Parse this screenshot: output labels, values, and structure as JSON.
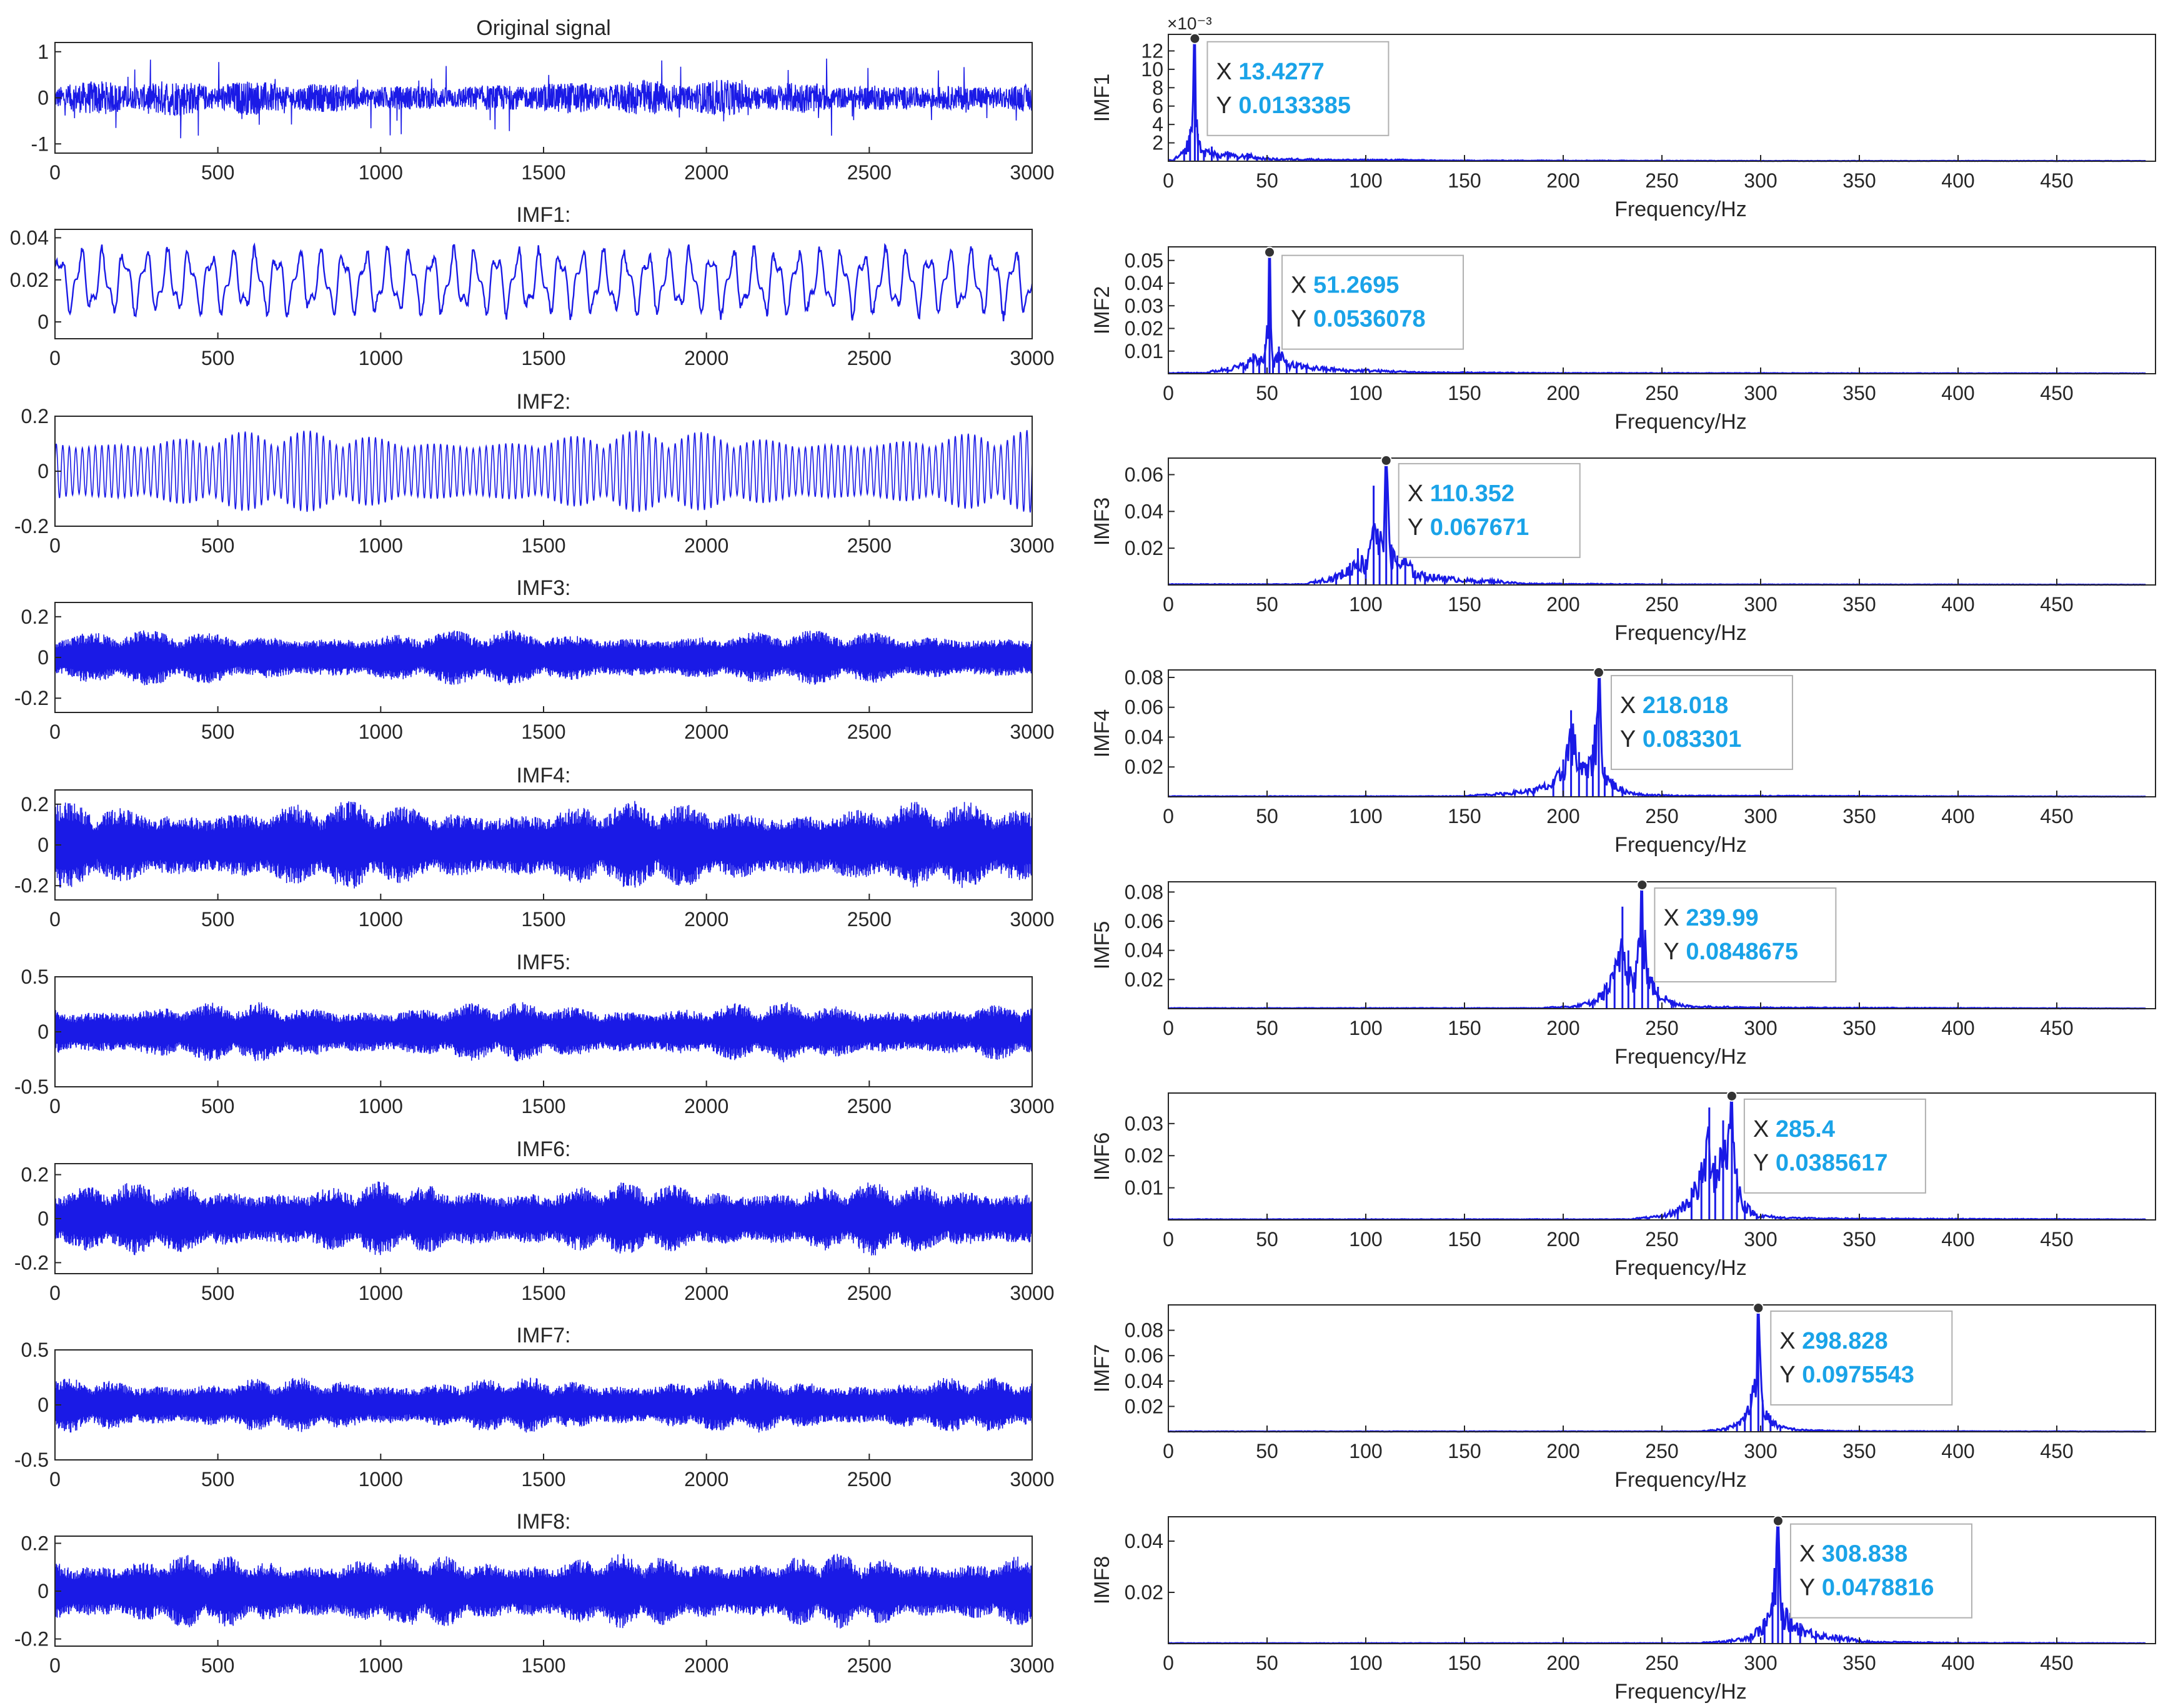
{
  "figure": {
    "colors": {
      "signal": "#1a1ae6",
      "spectrum": "#1a1ae6",
      "axis": "#262626",
      "datatip_value": "#1aa3e8",
      "datatip_key": "#262626",
      "background": "#ffffff"
    }
  },
  "chart_data": [
    {
      "type": "line",
      "panel": "time",
      "title": "Original signal",
      "xlim": [
        0,
        3000
      ],
      "xticks": [
        "0",
        "500",
        "1000",
        "1500",
        "2000",
        "2500",
        "3000"
      ],
      "ylim": [
        -1.2,
        1.2
      ],
      "yticks": [
        "1",
        "0",
        "-1"
      ],
      "ytick_values": [
        1,
        0,
        -1
      ],
      "series": [
        {
          "amplitude": 0.9,
          "style": "noise_with_spikes"
        }
      ]
    },
    {
      "type": "line",
      "panel": "time",
      "title": "IMF1:",
      "xlim": [
        0,
        3000
      ],
      "xticks": [
        "0",
        "500",
        "1000",
        "1500",
        "2000",
        "2500",
        "3000"
      ],
      "ylim": [
        -0.008,
        0.044
      ],
      "yticks": [
        "0.04",
        "0.02",
        "0"
      ],
      "ytick_values": [
        0.04,
        0.02,
        0
      ],
      "series": [
        {
          "amplitude": 0.019,
          "offset": 0.019,
          "cycles": 45,
          "style": "oscillation"
        }
      ]
    },
    {
      "type": "line",
      "panel": "time",
      "title": "IMF2:",
      "xlim": [
        0,
        3000
      ],
      "xticks": [
        "0",
        "500",
        "1000",
        "1500",
        "2000",
        "2500",
        "3000"
      ],
      "ylim": [
        -0.2,
        0.2
      ],
      "yticks": [
        "0.2",
        "0",
        "-0.2"
      ],
      "ytick_values": [
        0.2,
        0,
        -0.2
      ],
      "series": [
        {
          "amplitude": 0.15,
          "cycles": 150,
          "style": "modulated"
        }
      ]
    },
    {
      "type": "line",
      "panel": "time",
      "title": "IMF3:",
      "xlim": [
        0,
        3000
      ],
      "xticks": [
        "0",
        "500",
        "1000",
        "1500",
        "2000",
        "2500",
        "3000"
      ],
      "ylim": [
        -0.27,
        0.27
      ],
      "yticks": [
        "0.2",
        "0",
        "-0.2"
      ],
      "ytick_values": [
        0.2,
        0,
        -0.2
      ],
      "series": [
        {
          "amplitude": 0.14,
          "style": "dense_band"
        }
      ]
    },
    {
      "type": "line",
      "panel": "time",
      "title": "IMF4:",
      "xlim": [
        0,
        3000
      ],
      "xticks": [
        "0",
        "500",
        "1000",
        "1500",
        "2000",
        "2500",
        "3000"
      ],
      "ylim": [
        -0.27,
        0.27
      ],
      "yticks": [
        "0.2",
        "0",
        "-0.2"
      ],
      "ytick_values": [
        0.2,
        0,
        -0.2
      ],
      "series": [
        {
          "amplitude": 0.22,
          "style": "dense_band"
        }
      ]
    },
    {
      "type": "line",
      "panel": "time",
      "title": "IMF5:",
      "xlim": [
        0,
        3000
      ],
      "xticks": [
        "0",
        "500",
        "1000",
        "1500",
        "2000",
        "2500",
        "3000"
      ],
      "ylim": [
        -0.5,
        0.5
      ],
      "yticks": [
        "0.5",
        "0",
        "-0.5"
      ],
      "ytick_values": [
        0.5,
        0,
        -0.5
      ],
      "series": [
        {
          "amplitude": 0.28,
          "style": "dense_band"
        }
      ]
    },
    {
      "type": "line",
      "panel": "time",
      "title": "IMF6:",
      "xlim": [
        0,
        3000
      ],
      "xticks": [
        "0",
        "500",
        "1000",
        "1500",
        "2000",
        "2500",
        "3000"
      ],
      "ylim": [
        -0.25,
        0.25
      ],
      "yticks": [
        "0.2",
        "0",
        "-0.2"
      ],
      "ytick_values": [
        0.2,
        0,
        -0.2
      ],
      "series": [
        {
          "amplitude": 0.17,
          "style": "dense_band"
        }
      ]
    },
    {
      "type": "line",
      "panel": "time",
      "title": "IMF7:",
      "xlim": [
        0,
        3000
      ],
      "xticks": [
        "0",
        "500",
        "1000",
        "1500",
        "2000",
        "2500",
        "3000"
      ],
      "ylim": [
        -0.5,
        0.5
      ],
      "yticks": [
        "0.5",
        "0",
        "-0.5"
      ],
      "ytick_values": [
        0.5,
        0,
        -0.5
      ],
      "series": [
        {
          "amplitude": 0.26,
          "style": "dense_band"
        }
      ]
    },
    {
      "type": "line",
      "panel": "time",
      "title": "IMF8:",
      "xlim": [
        0,
        3000
      ],
      "xticks": [
        "0",
        "500",
        "1000",
        "1500",
        "2000",
        "2500",
        "3000"
      ],
      "ylim": [
        -0.23,
        0.23
      ],
      "yticks": [
        "0.2",
        "0",
        "-0.2"
      ],
      "ytick_values": [
        0.2,
        0,
        -0.2
      ],
      "series": [
        {
          "amplitude": 0.16,
          "style": "dense_band"
        }
      ]
    },
    {
      "type": "line",
      "panel": "spectrum",
      "ylabel": "IMF1",
      "xlabel": "Frequency/Hz",
      "xlim": [
        0,
        500
      ],
      "xticks": [
        "0",
        "50",
        "100",
        "150",
        "200",
        "250",
        "300",
        "350",
        "400",
        "450"
      ],
      "ylim": [
        0,
        0.0138
      ],
      "yticks": [
        "12",
        "10",
        "8",
        "6",
        "4",
        "2"
      ],
      "ytick_values": [
        0.012,
        0.01,
        0.008,
        0.006,
        0.004,
        0.002
      ],
      "exponent": "×10⁻³",
      "peak": {
        "x": 13.4277,
        "y": 0.0133385
      },
      "datatip": {
        "x_key": "X",
        "y_key": "Y",
        "x_value": "13.4277",
        "y_value": "0.0133385"
      },
      "spectrum_points": [
        [
          3,
          0.0003
        ],
        [
          8,
          0.0013
        ],
        [
          11,
          0.0035
        ],
        [
          13.4277,
          0.0133385
        ],
        [
          15,
          0.003
        ],
        [
          18,
          0.0012
        ],
        [
          22,
          0.0016
        ],
        [
          25,
          0.0008
        ],
        [
          30,
          0.0011
        ],
        [
          35,
          0.0006
        ],
        [
          40,
          0.0009
        ],
        [
          45,
          0.0005
        ],
        [
          55,
          0.0003
        ],
        [
          70,
          0.0003
        ],
        [
          85,
          0.0002
        ],
        [
          100,
          0.0002
        ],
        [
          120,
          0.0002
        ],
        [
          140,
          0.0001
        ],
        [
          160,
          0.0001
        ],
        [
          200,
          0.0001
        ],
        [
          300,
          5e-05
        ],
        [
          495,
          5e-05
        ]
      ]
    },
    {
      "type": "line",
      "panel": "spectrum",
      "ylabel": "IMF2",
      "xlabel": "Frequency/Hz",
      "xlim": [
        0,
        500
      ],
      "xticks": [
        "0",
        "50",
        "100",
        "150",
        "200",
        "250",
        "300",
        "350",
        "400",
        "450"
      ],
      "ylim": [
        0,
        0.056
      ],
      "yticks": [
        "0.05",
        "0.04",
        "0.03",
        "0.02",
        "0.01"
      ],
      "ytick_values": [
        0.05,
        0.04,
        0.03,
        0.02,
        0.01
      ],
      "peak": {
        "x": 51.2695,
        "y": 0.0536078
      },
      "datatip": {
        "x_key": "X",
        "y_key": "Y",
        "x_value": "51.2695",
        "y_value": "0.0536078"
      },
      "spectrum_points": [
        [
          20,
          0.001
        ],
        [
          30,
          0.003
        ],
        [
          38,
          0.005
        ],
        [
          43,
          0.009
        ],
        [
          46,
          0.007
        ],
        [
          49,
          0.013
        ],
        [
          51.2695,
          0.0536078
        ],
        [
          53,
          0.006
        ],
        [
          56,
          0.012
        ],
        [
          60,
          0.006
        ],
        [
          65,
          0.005
        ],
        [
          70,
          0.004
        ],
        [
          80,
          0.003
        ],
        [
          90,
          0.002
        ],
        [
          100,
          0.002
        ],
        [
          130,
          0.0008
        ],
        [
          200,
          0.0004
        ],
        [
          495,
          0.0002
        ]
      ]
    },
    {
      "type": "line",
      "panel": "spectrum",
      "ylabel": "IMF3",
      "xlabel": "Frequency/Hz",
      "xlim": [
        0,
        500
      ],
      "xticks": [
        "0",
        "50",
        "100",
        "150",
        "200",
        "250",
        "300",
        "350",
        "400",
        "450"
      ],
      "ylim": [
        0,
        0.069
      ],
      "yticks": [
        "0.06",
        "0.04",
        "0.02"
      ],
      "ytick_values": [
        0.06,
        0.04,
        0.02
      ],
      "peak": {
        "x": 110.352,
        "y": 0.067671
      },
      "datatip": {
        "x_key": "X",
        "y_key": "Y",
        "x_value": "110.352",
        "y_value": "0.067671"
      },
      "spectrum_points": [
        [
          70,
          0.001
        ],
        [
          85,
          0.006
        ],
        [
          92,
          0.012
        ],
        [
          96,
          0.02
        ],
        [
          100,
          0.014
        ],
        [
          104,
          0.054
        ],
        [
          107,
          0.025
        ],
        [
          110.352,
          0.067671
        ],
        [
          113,
          0.022
        ],
        [
          116,
          0.016
        ],
        [
          120,
          0.018
        ],
        [
          125,
          0.008
        ],
        [
          130,
          0.007
        ],
        [
          140,
          0.005
        ],
        [
          155,
          0.003
        ],
        [
          165,
          0.003
        ],
        [
          180,
          0.001
        ],
        [
          250,
          0.0004
        ],
        [
          495,
          0.0002
        ]
      ]
    },
    {
      "type": "line",
      "panel": "spectrum",
      "ylabel": "IMF4",
      "xlabel": "Frequency/Hz",
      "xlim": [
        0,
        500
      ],
      "xticks": [
        "0",
        "50",
        "100",
        "150",
        "200",
        "250",
        "300",
        "350",
        "400",
        "450"
      ],
      "ylim": [
        0,
        0.085
      ],
      "yticks": [
        "0.08",
        "0.06",
        "0.04",
        "0.02"
      ],
      "ytick_values": [
        0.08,
        0.06,
        0.04,
        0.02
      ],
      "peak": {
        "x": 218.018,
        "y": 0.083301
      },
      "datatip": {
        "x_key": "X",
        "y_key": "Y",
        "x_value": "218.018",
        "y_value": "0.083301"
      },
      "spectrum_points": [
        [
          150,
          0.001
        ],
        [
          170,
          0.003
        ],
        [
          185,
          0.006
        ],
        [
          195,
          0.012
        ],
        [
          200,
          0.025
        ],
        [
          204,
          0.058
        ],
        [
          208,
          0.03
        ],
        [
          212,
          0.022
        ],
        [
          215,
          0.035
        ],
        [
          218.018,
          0.083301
        ],
        [
          221,
          0.02
        ],
        [
          225,
          0.012
        ],
        [
          230,
          0.006
        ],
        [
          240,
          0.002
        ],
        [
          260,
          0.001
        ],
        [
          495,
          0.0002
        ]
      ]
    },
    {
      "type": "line",
      "panel": "spectrum",
      "ylabel": "IMF5",
      "xlabel": "Frequency/Hz",
      "xlim": [
        0,
        500
      ],
      "xticks": [
        "0",
        "50",
        "100",
        "150",
        "200",
        "250",
        "300",
        "350",
        "400",
        "450"
      ],
      "ylim": [
        0,
        0.087
      ],
      "yticks": [
        "0.08",
        "0.06",
        "0.04",
        "0.02"
      ],
      "ytick_values": [
        0.08,
        0.06,
        0.04,
        0.02
      ],
      "peak": {
        "x": 239.99,
        "y": 0.0848675
      },
      "datatip": {
        "x_key": "X",
        "y_key": "Y",
        "x_value": "239.99",
        "y_value": "0.0848675"
      },
      "spectrum_points": [
        [
          190,
          0.001
        ],
        [
          205,
          0.002
        ],
        [
          215,
          0.006
        ],
        [
          222,
          0.018
        ],
        [
          226,
          0.03
        ],
        [
          230,
          0.07
        ],
        [
          233,
          0.04
        ],
        [
          236,
          0.025
        ],
        [
          239.99,
          0.0848675
        ],
        [
          243,
          0.028
        ],
        [
          248,
          0.015
        ],
        [
          255,
          0.006
        ],
        [
          265,
          0.002
        ],
        [
          300,
          0.001
        ],
        [
          495,
          0.0002
        ]
      ]
    },
    {
      "type": "line",
      "panel": "spectrum",
      "ylabel": "IMF6",
      "xlabel": "Frequency/Hz",
      "xlim": [
        0,
        500
      ],
      "xticks": [
        "0",
        "50",
        "100",
        "150",
        "200",
        "250",
        "300",
        "350",
        "400",
        "450"
      ],
      "ylim": [
        0,
        0.0395
      ],
      "yticks": [
        "0.03",
        "0.02",
        "0.01"
      ],
      "ytick_values": [
        0.03,
        0.02,
        0.01
      ],
      "peak": {
        "x": 285.4,
        "y": 0.0385617
      },
      "datatip": {
        "x_key": "X",
        "y_key": "Y",
        "x_value": "285.4",
        "y_value": "0.0385617"
      },
      "spectrum_points": [
        [
          235,
          0.0005
        ],
        [
          250,
          0.0015
        ],
        [
          258,
          0.004
        ],
        [
          265,
          0.01
        ],
        [
          270,
          0.018
        ],
        [
          274,
          0.035
        ],
        [
          277,
          0.02
        ],
        [
          281,
          0.031
        ],
        [
          285.4,
          0.0385617
        ],
        [
          288,
          0.016
        ],
        [
          292,
          0.006
        ],
        [
          298,
          0.002
        ],
        [
          310,
          0.001
        ],
        [
          330,
          0.0006
        ],
        [
          495,
          0.0002
        ]
      ]
    },
    {
      "type": "line",
      "panel": "spectrum",
      "ylabel": "IMF7",
      "xlabel": "Frequency/Hz",
      "xlim": [
        0,
        500
      ],
      "xticks": [
        "0",
        "50",
        "100",
        "150",
        "200",
        "250",
        "300",
        "350",
        "400",
        "450"
      ],
      "ylim": [
        0,
        0.1
      ],
      "yticks": [
        "0.08",
        "0.06",
        "0.04",
        "0.02"
      ],
      "ytick_values": [
        0.08,
        0.06,
        0.04,
        0.02
      ],
      "peak": {
        "x": 298.828,
        "y": 0.0975543
      },
      "datatip": {
        "x_key": "X",
        "y_key": "Y",
        "x_value": "298.828",
        "y_value": "0.0975543"
      },
      "spectrum_points": [
        [
          270,
          0.0008
        ],
        [
          282,
          0.003
        ],
        [
          288,
          0.008
        ],
        [
          292,
          0.015
        ],
        [
          295,
          0.03
        ],
        [
          298.828,
          0.0975543
        ],
        [
          301,
          0.025
        ],
        [
          305,
          0.013
        ],
        [
          310,
          0.005
        ],
        [
          320,
          0.002
        ],
        [
          340,
          0.0008
        ],
        [
          495,
          0.0002
        ]
      ]
    },
    {
      "type": "line",
      "panel": "spectrum",
      "ylabel": "IMF8",
      "xlabel": "Frequency/Hz",
      "xlim": [
        0,
        500
      ],
      "xticks": [
        "0",
        "50",
        "100",
        "150",
        "200",
        "250",
        "300",
        "350",
        "400",
        "450"
      ],
      "ylim": [
        0,
        0.0495
      ],
      "yticks": [
        "0.04",
        "0.02"
      ],
      "ytick_values": [
        0.04,
        0.02
      ],
      "peak": {
        "x": 308.838,
        "y": 0.0478816
      },
      "datatip": {
        "x_key": "X",
        "y_key": "Y",
        "x_value": "308.838",
        "y_value": "0.0478816"
      },
      "spectrum_points": [
        [
          270,
          0.0005
        ],
        [
          285,
          0.0015
        ],
        [
          295,
          0.004
        ],
        [
          302,
          0.01
        ],
        [
          306,
          0.02
        ],
        [
          308.838,
          0.0478816
        ],
        [
          311,
          0.016
        ],
        [
          315,
          0.012
        ],
        [
          320,
          0.008
        ],
        [
          328,
          0.005
        ],
        [
          340,
          0.003
        ],
        [
          355,
          0.001
        ],
        [
          400,
          0.0004
        ],
        [
          495,
          0.0002
        ]
      ]
    }
  ]
}
